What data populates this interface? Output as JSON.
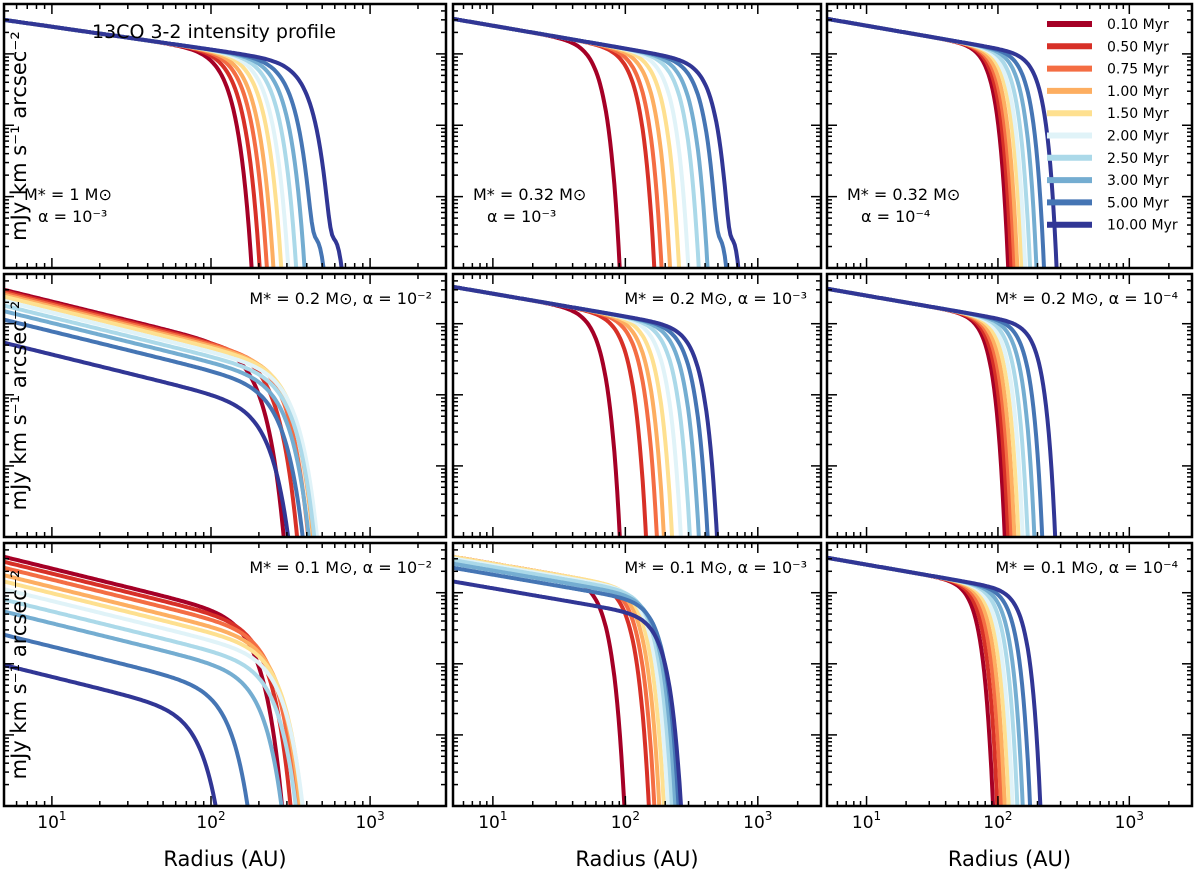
{
  "chart_data": {
    "type": "line",
    "title": "13CO 3-2 intensity profile",
    "xlabel": "Radius (AU)",
    "ylabel": "mJy km s⁻¹ arcsec⁻²",
    "xscale": "log",
    "yscale": "log",
    "xlim": [
      5,
      3000
    ],
    "ylim": [
      1,
      5000
    ],
    "xticks": [
      {
        "v": 10,
        "base": "10",
        "exp": "1"
      },
      {
        "v": 100,
        "base": "10",
        "exp": "2"
      },
      {
        "v": 1000,
        "base": "10",
        "exp": "3"
      }
    ],
    "yticks": [
      {
        "v": 1,
        "base": "10",
        "exp": "0"
      },
      {
        "v": 10,
        "base": "10",
        "exp": "1"
      },
      {
        "v": 100,
        "base": "10",
        "exp": "2"
      },
      {
        "v": 1000,
        "base": "10",
        "exp": "3"
      }
    ],
    "legend": {
      "position": "upper-right of top-right panel",
      "entries": [
        {
          "label": "0.10 Myr",
          "color": "#a50026"
        },
        {
          "label": "0.50 Myr",
          "color": "#d73027"
        },
        {
          "label": "0.75 Myr",
          "color": "#f46d43"
        },
        {
          "label": "1.00 Myr",
          "color": "#fdae61"
        },
        {
          "label": "1.50 Myr",
          "color": "#fee090"
        },
        {
          "label": "2.00 Myr",
          "color": "#e0f3f8"
        },
        {
          "label": "2.50 Myr",
          "color": "#abd9e9"
        },
        {
          "label": "3.00 Myr",
          "color": "#74add1"
        },
        {
          "label": "5.00 Myr",
          "color": "#4575b4"
        },
        {
          "label": "10.00 Myr",
          "color": "#313695"
        }
      ]
    },
    "panels": [
      {
        "id": "r1c1",
        "annotation": [
          "M* = 1 M⊙",
          "α = 10⁻³"
        ],
        "annot_style": "two-line-left",
        "I0": 3000,
        "r_cut": [
          120,
          135,
          150,
          165,
          185,
          205,
          230,
          260,
          300,
          390
        ],
        "decay": "slow",
        "bump_last": true
      },
      {
        "id": "r1c2",
        "annotation": [
          "M* = 0.32 M⊙",
          "α = 10⁻³"
        ],
        "annot_style": "two-line-left",
        "I0": 3100,
        "r_cut": [
          60,
          110,
          125,
          145,
          170,
          200,
          240,
          280,
          340,
          420
        ],
        "decay": "slow",
        "bump_last": true
      },
      {
        "id": "r1c3",
        "annotation": [
          "M* = 0.32 M⊙",
          "α = 10⁻⁴"
        ],
        "annot_style": "two-line-left",
        "I0": 3100,
        "r_cut": [
          85,
          90,
          95,
          100,
          108,
          115,
          125,
          140,
          160,
          200
        ],
        "decay": "fast",
        "bump_last": false
      },
      {
        "id": "r2c1",
        "annotation": [
          "M* = 0.2 M⊙, α = 10⁻²"
        ],
        "annot_style": "one-line-right",
        "I0": 3000,
        "r_cut": [
          180,
          220,
          260,
          280,
          290,
          300,
          290,
          270,
          250,
          210
        ],
        "decay": "viscous",
        "scale": [
          1.0,
          0.95,
          0.9,
          0.85,
          0.8,
          0.7,
          0.6,
          0.5,
          0.38,
          0.18
        ],
        "bump_last": false
      },
      {
        "id": "r2c2",
        "annotation": [
          "M* = 0.2 M⊙, α = 10⁻³"
        ],
        "annot_style": "one-line-right",
        "I0": 3300,
        "r_cut": [
          60,
          95,
          115,
          130,
          150,
          175,
          205,
          240,
          280,
          330
        ],
        "decay": "slow",
        "bump_last": false
      },
      {
        "id": "r2c3",
        "annotation": [
          "M* = 0.2 M⊙, α = 10⁻⁴"
        ],
        "annot_style": "one-line-right",
        "I0": 3100,
        "r_cut": [
          80,
          85,
          90,
          95,
          102,
          110,
          120,
          135,
          155,
          195
        ],
        "decay": "fast",
        "bump_last": false
      },
      {
        "id": "r3c1",
        "annotation": [
          "M* = 0.1 M⊙, α = 10⁻²"
        ],
        "annot_style": "one-line-right",
        "I0": 3200,
        "r_cut": [
          175,
          200,
          220,
          235,
          245,
          250,
          230,
          190,
          120,
          80
        ],
        "decay": "viscous",
        "scale": [
          1.0,
          0.85,
          0.7,
          0.55,
          0.45,
          0.35,
          0.25,
          0.17,
          0.08,
          0.03
        ],
        "bump_last": false
      },
      {
        "id": "r3c2",
        "annotation": [
          "M* = 0.1 M⊙, α = 10⁻³"
        ],
        "annot_style": "one-line-right",
        "I0": 3200,
        "r_cut": [
          65,
          100,
          110,
          120,
          130,
          140,
          150,
          160,
          170,
          180
        ],
        "decay": "slow",
        "scale": [
          1.0,
          1.0,
          1.0,
          1.0,
          1.0,
          0.95,
          0.9,
          0.8,
          0.7,
          0.45
        ],
        "bump_last": false
      },
      {
        "id": "r3c3",
        "annotation": [
          "M* = 0.1 M⊙, α = 10⁻⁴"
        ],
        "annot_style": "one-line-right",
        "I0": 3100,
        "r_cut": [
          65,
          70,
          75,
          80,
          86,
          92,
          100,
          110,
          125,
          150
        ],
        "decay": "fast",
        "bump_last": false
      }
    ]
  }
}
